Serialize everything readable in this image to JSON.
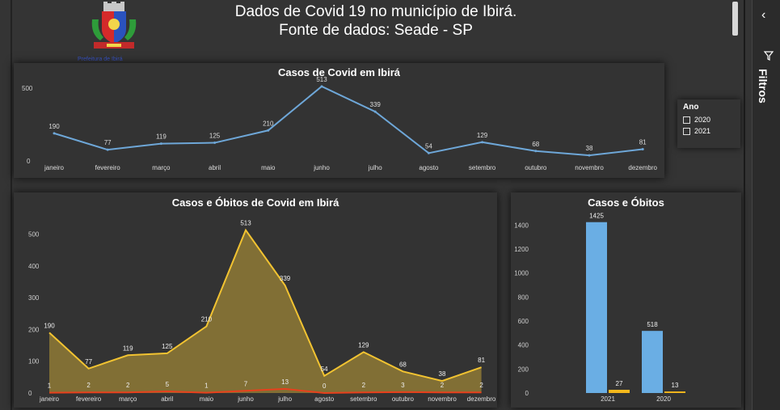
{
  "header": {
    "title_line1": "Dados de Covid 19 no município de Ibirá.",
    "title_line2": "Fonte de dados: Seade - SP",
    "logo_caption": "Prefeitura de Ibirá"
  },
  "chart1": {
    "title": "Casos de Covid em Ibirá",
    "y_ticks": [
      "0",
      "500"
    ]
  },
  "chart2": {
    "title": "Casos e Óbitos de Covid em Ibirá",
    "y_ticks": [
      "0",
      "100",
      "200",
      "300",
      "400",
      "500"
    ]
  },
  "chart3": {
    "title": "Casos e Óbitos",
    "y_ticks": [
      "0",
      "200",
      "400",
      "600",
      "800",
      "1000",
      "1200",
      "1400"
    ]
  },
  "legend": {
    "title": "Ano",
    "items": [
      "2020",
      "2021"
    ]
  },
  "side_panel": {
    "label": "Filtros"
  },
  "colors": {
    "cases_line": "#6ea7d8",
    "area_line": "#f2c331",
    "area_fill": "#8a7535",
    "deaths_line": "#e8401c",
    "bar_cases": "#6aaee4",
    "bar_deaths": "#f5b81c"
  },
  "chart_data": [
    {
      "type": "line",
      "title": "Casos de Covid em Ibirá",
      "categories": [
        "janeiro",
        "fevereiro",
        "março",
        "abril",
        "maio",
        "junho",
        "julho",
        "agosto",
        "setembro",
        "outubro",
        "novembro",
        "dezembro"
      ],
      "series": [
        {
          "values": [
            190,
            77,
            119,
            125,
            210,
            513,
            339,
            54,
            129,
            68,
            38,
            81
          ]
        }
      ],
      "ylim": [
        0,
        540
      ]
    },
    {
      "type": "area",
      "title": "Casos e Óbitos de Covid em Ibirá",
      "categories": [
        "janeiro",
        "fevereiro",
        "março",
        "abril",
        "maio",
        "junho",
        "julho",
        "agosto",
        "setembro",
        "outubro",
        "novembro",
        "dezembro"
      ],
      "series": [
        {
          "values": [
            190,
            77,
            119,
            125,
            210,
            513,
            339,
            54,
            129,
            68,
            38,
            81
          ]
        },
        {
          "values": [
            1,
            2,
            2,
            5,
            1,
            7,
            13,
            0,
            2,
            3,
            2,
            2
          ]
        }
      ],
      "ylim": [
        0,
        540
      ]
    },
    {
      "type": "bar",
      "title": "Casos e Óbitos",
      "categories": [
        "2021",
        "2020"
      ],
      "series": [
        {
          "values": [
            1425,
            518
          ]
        },
        {
          "values": [
            27,
            13
          ]
        }
      ],
      "ylim": [
        0,
        1450
      ]
    }
  ]
}
